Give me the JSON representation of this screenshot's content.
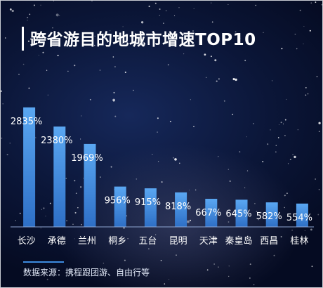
{
  "chart_data": {
    "type": "bar",
    "title": "跨省游目的地城市增速TOP10",
    "categories": [
      "长沙",
      "承德",
      "兰州",
      "桐乡",
      "五台",
      "昆明",
      "天津",
      "秦皇岛",
      "西昌",
      "桂林"
    ],
    "values": [
      2835,
      2380,
      1969,
      956,
      915,
      818,
      667,
      645,
      582,
      554
    ],
    "value_labels": [
      "2835%",
      "2380%",
      "1969%",
      "956%",
      "915%",
      "818%",
      "667%",
      "645%",
      "582%",
      "554%"
    ],
    "ylim": [
      0,
      3000
    ],
    "grid": false,
    "xlabel": "",
    "ylabel": "",
    "colors": {
      "bar_top": "#5aa7f2",
      "bar_bottom": "#2e6fc6",
      "text": "#ffffff",
      "accent": "#3d8be0"
    }
  },
  "footer": {
    "source": "数据来源：携程跟团游、自由行等"
  }
}
